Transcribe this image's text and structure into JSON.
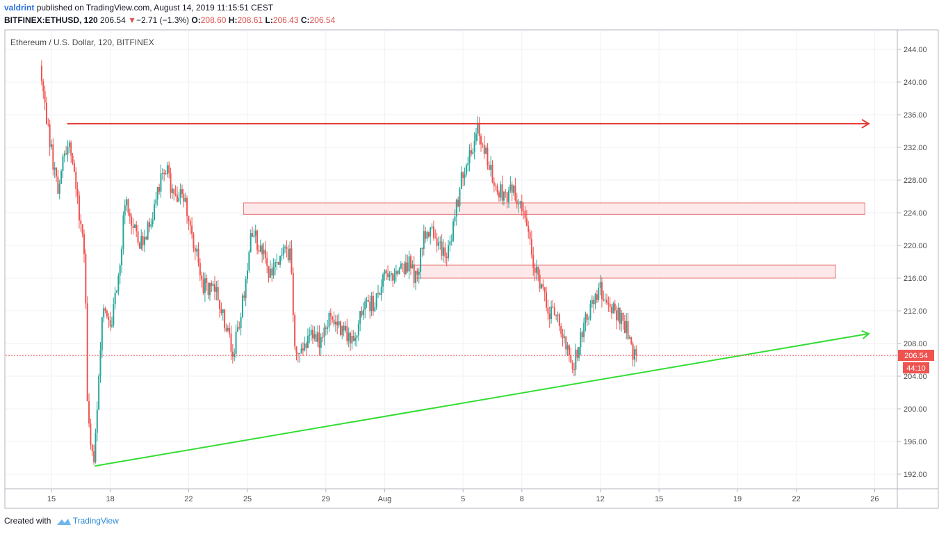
{
  "header": {
    "user": "valdrint",
    "published_text": "published on TradingView.com, August 14, 2019 11:15:51 CEST",
    "symbol": "BITFINEX:ETHUSD, 120",
    "last": "206.54",
    "change": "−2.71 (−1.3%)",
    "open_label": "O:",
    "open": "208.60",
    "high_label": "H:",
    "high": "208.61",
    "low_label": "L:",
    "low": "206.43",
    "close_label": "C:",
    "close": "206.54"
  },
  "chart_title": "Ethereum / U.S. Dollar, 120, BITFINEX",
  "footer": {
    "prefix": "Created with",
    "brand": "TradingView"
  },
  "price_badge": "206.54",
  "countdown_badge": "44:10",
  "colors": {
    "up": "#26a69a",
    "down": "#ef5350",
    "resistance": "#e53935",
    "support": "#33dd33",
    "zone_fill": "#fde3e3",
    "zone_border": "#e57373",
    "grid": "#eef2f6",
    "axis_text": "#4a4a4a"
  },
  "chart_data": {
    "type": "candlestick",
    "ylim": [
      190,
      246
    ],
    "y_ticks": [
      "244.00",
      "240.00",
      "236.00",
      "232.00",
      "228.00",
      "224.00",
      "220.00",
      "216.00",
      "212.00",
      "208.00",
      "204.00",
      "200.00",
      "196.00",
      "192.00"
    ],
    "x_ticks": [
      {
        "day": 0,
        "label": "15"
      },
      {
        "day": 3,
        "label": "18"
      },
      {
        "day": 7,
        "label": "22"
      },
      {
        "day": 10,
        "label": "25"
      },
      {
        "day": 14,
        "label": "29"
      },
      {
        "day": 17,
        "label": "Aug"
      },
      {
        "day": 21,
        "label": "5"
      },
      {
        "day": 24,
        "label": "8"
      },
      {
        "day": 28,
        "label": "12"
      },
      {
        "day": 31,
        "label": "15"
      },
      {
        "day": 35,
        "label": "19"
      },
      {
        "day": 38,
        "label": "22"
      },
      {
        "day": 42,
        "label": "26"
      }
    ],
    "anchor_points": [
      [
        -0.5,
        241
      ],
      [
        -0.3,
        236
      ],
      [
        0.3,
        227
      ],
      [
        0.9,
        233
      ],
      [
        1.3,
        226
      ],
      [
        1.7,
        219
      ],
      [
        1.85,
        198
      ],
      [
        2.2,
        194
      ],
      [
        2.6,
        213
      ],
      [
        3.0,
        210
      ],
      [
        3.4,
        216
      ],
      [
        3.8,
        226
      ],
      [
        4.2,
        222
      ],
      [
        4.6,
        220
      ],
      [
        5.2,
        224
      ],
      [
        5.8,
        230
      ],
      [
        6.2,
        226
      ],
      [
        6.8,
        226
      ],
      [
        7.3,
        220
      ],
      [
        7.7,
        215
      ],
      [
        8.3,
        215
      ],
      [
        8.9,
        210
      ],
      [
        9.3,
        207
      ],
      [
        9.8,
        214
      ],
      [
        10.2,
        222
      ],
      [
        10.6,
        220
      ],
      [
        11.2,
        216
      ],
      [
        11.7,
        219
      ],
      [
        12.2,
        219
      ],
      [
        12.4,
        207
      ],
      [
        13.2,
        209
      ],
      [
        13.8,
        208
      ],
      [
        14.2,
        211
      ],
      [
        14.8,
        210
      ],
      [
        15.3,
        208
      ],
      [
        15.9,
        212
      ],
      [
        16.5,
        213
      ],
      [
        17.0,
        216
      ],
      [
        17.5,
        216
      ],
      [
        18.2,
        218
      ],
      [
        18.6,
        216
      ],
      [
        19.1,
        222
      ],
      [
        19.6,
        221
      ],
      [
        20.1,
        219
      ],
      [
        20.5,
        222
      ],
      [
        20.9,
        228
      ],
      [
        21.4,
        232
      ],
      [
        21.8,
        234
      ],
      [
        22.0,
        233
      ],
      [
        22.5,
        228
      ],
      [
        23.1,
        226
      ],
      [
        23.5,
        227
      ],
      [
        24.1,
        224
      ],
      [
        24.5,
        219
      ],
      [
        24.9,
        215
      ],
      [
        25.4,
        212
      ],
      [
        25.9,
        211
      ],
      [
        26.3,
        207
      ],
      [
        26.6,
        205
      ],
      [
        27.1,
        210
      ],
      [
        27.6,
        213
      ],
      [
        28.0,
        215
      ],
      [
        28.3,
        213
      ],
      [
        28.8,
        212
      ],
      [
        29.3,
        210
      ],
      [
        29.6,
        207
      ],
      [
        29.9,
        206.5
      ]
    ],
    "last_close": 206.54,
    "resistance_line": {
      "x1": 0.8,
      "x2": 41.7,
      "y": 234.9
    },
    "support_line": {
      "x1": 2.2,
      "y1": 193,
      "x2": 41.7,
      "y2": 209.2
    },
    "zones": [
      {
        "x1": 9.8,
        "x2": 41.5,
        "y1": 223.8,
        "y2": 225.2
      },
      {
        "x1": 18.5,
        "x2": 40.0,
        "y1": 216.0,
        "y2": 217.6
      }
    ],
    "resistance": 234.9,
    "support_start": [
      2.2,
      193
    ],
    "support_end": [
      41.7,
      209.2
    ]
  }
}
